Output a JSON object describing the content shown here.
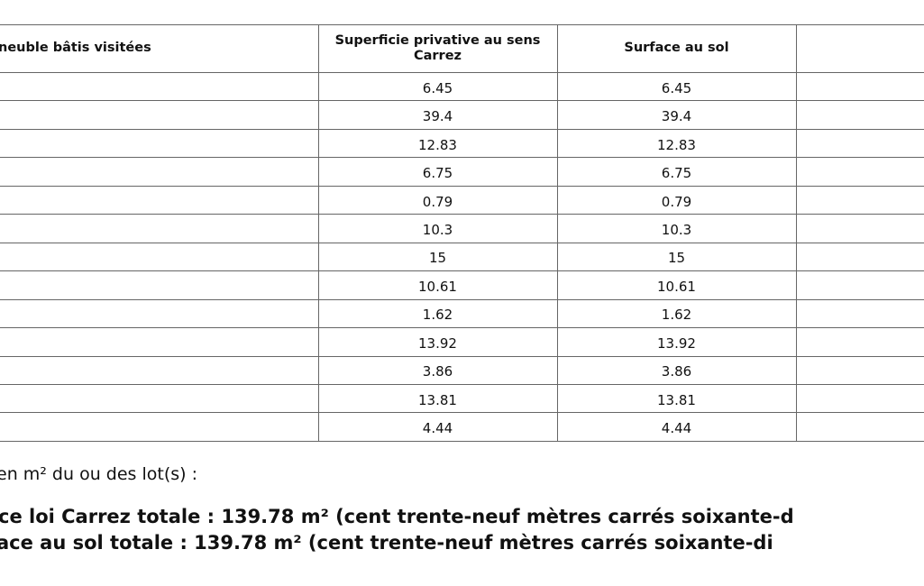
{
  "table": {
    "headers": [
      "neuble bâtis visitées",
      "Superficie privative au sens Carrez",
      "Surface au sol"
    ],
    "rows": [
      [
        "6.45",
        "6.45"
      ],
      [
        "39.4",
        "39.4"
      ],
      [
        "12.83",
        "12.83"
      ],
      [
        "6.75",
        "6.75"
      ],
      [
        "0.79",
        "0.79"
      ],
      [
        "10.3",
        "10.3"
      ],
      [
        "15",
        "15"
      ],
      [
        "10.61",
        "10.61"
      ],
      [
        "1.62",
        "1.62"
      ],
      [
        "13.92",
        "13.92"
      ],
      [
        "3.86",
        "3.86"
      ],
      [
        "13.81",
        "13.81"
      ],
      [
        "4.44",
        "4.44"
      ]
    ]
  },
  "note": "en m² du ou des lot(s) :",
  "totals": [
    "ce loi Carrez totale : 139.78 m² (cent trente-neuf mètres carrés soixante-d",
    "ace au sol totale : 139.78 m² (cent trente-neuf mètres carrés soixante-di"
  ]
}
